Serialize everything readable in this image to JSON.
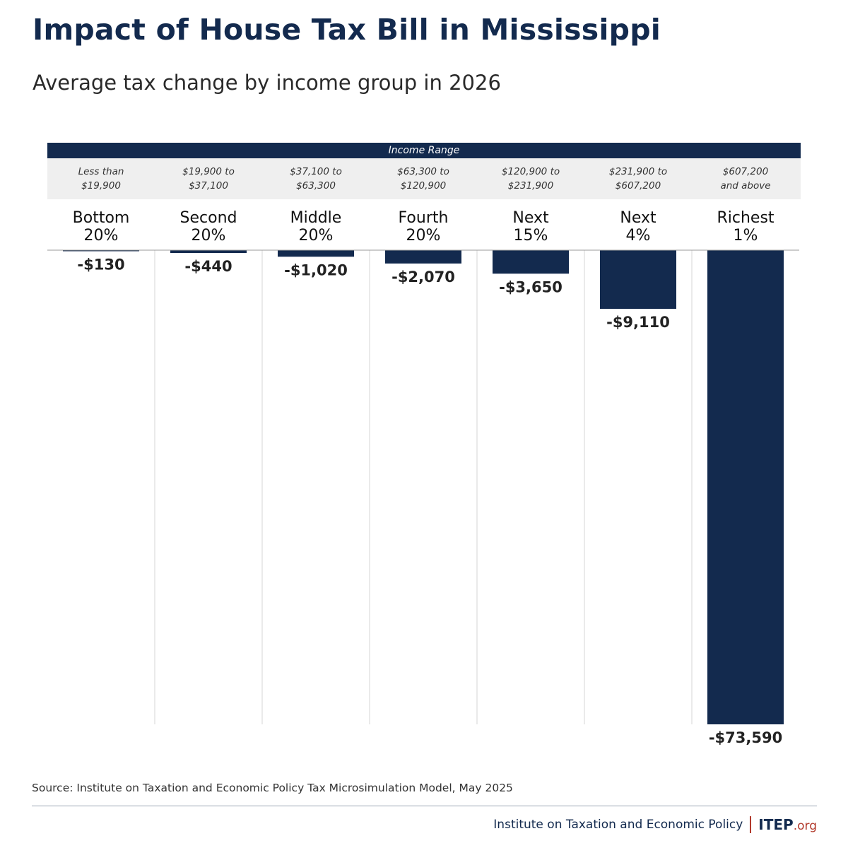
{
  "title": "Impact of House Tax Bill in Mississippi",
  "subtitle": "Average tax change by income group in 2026",
  "range_header": "Income Range",
  "source": "Source: Institute on Taxation and Economic Policy Tax Microsimulation Model, May 2025",
  "footer": {
    "org_name": "Institute on Taxation and Economic Policy",
    "logo_main": "ITEP",
    "logo_suffix": ".org"
  },
  "colors": {
    "bar": "#132a4e",
    "header_band": "#132a4e",
    "range_band": "#efefef",
    "logo_accent": "#b23a2c"
  },
  "chart_data": {
    "type": "bar",
    "categories": [
      "Bottom\n20%",
      "Second\n20%",
      "Middle\n20%",
      "Fourth\n20%",
      "Next\n15%",
      "Next\n4%",
      "Richest\n1%"
    ],
    "income_ranges": [
      "Less than\n$19,900",
      "$19,900 to\n$37,100",
      "$37,100 to\n$63,300",
      "$63,300 to\n$120,900",
      "$120,900 to\n$231,900",
      "$231,900 to\n$607,200",
      "$607,200\nand above"
    ],
    "values": [
      -130,
      -440,
      -1020,
      -2070,
      -3650,
      -9110,
      -73590
    ],
    "value_labels": [
      "-$130",
      "-$440",
      "-$1,020",
      "-$2,070",
      "-$3,650",
      "-$9,110",
      "-$73,590"
    ],
    "ylim": [
      -73590,
      0
    ],
    "grid": false,
    "legend": "none"
  }
}
